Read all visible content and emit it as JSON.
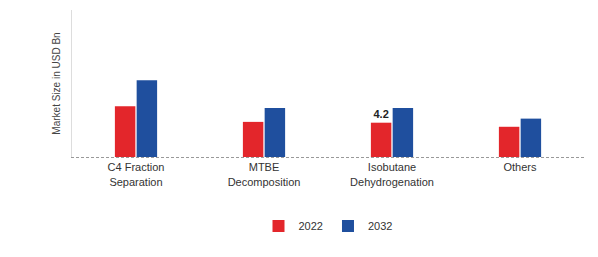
{
  "chart_data": {
    "type": "bar",
    "y_label": "Market Size in USD Bn",
    "categories": [
      "C4 Fraction Separation",
      "MTBE Decomposition",
      "Isobutane Dehydrogenation",
      "Others"
    ],
    "series": [
      {
        "name": "2022",
        "color": "#e3262b",
        "values": [
          6.2,
          4.3,
          4.2,
          3.7
        ]
      },
      {
        "name": "2032",
        "color": "#1f4f9e",
        "values": [
          9.4,
          6.0,
          6.0,
          4.7
        ]
      }
    ],
    "annotations": [
      {
        "text": "4.2",
        "category": "Isobutane Dehydrogenation",
        "series": "2022"
      }
    ],
    "ylim": [
      0,
      18
    ],
    "yticks": [],
    "grid": false,
    "legend": "bottom",
    "tick_labels": "x"
  }
}
